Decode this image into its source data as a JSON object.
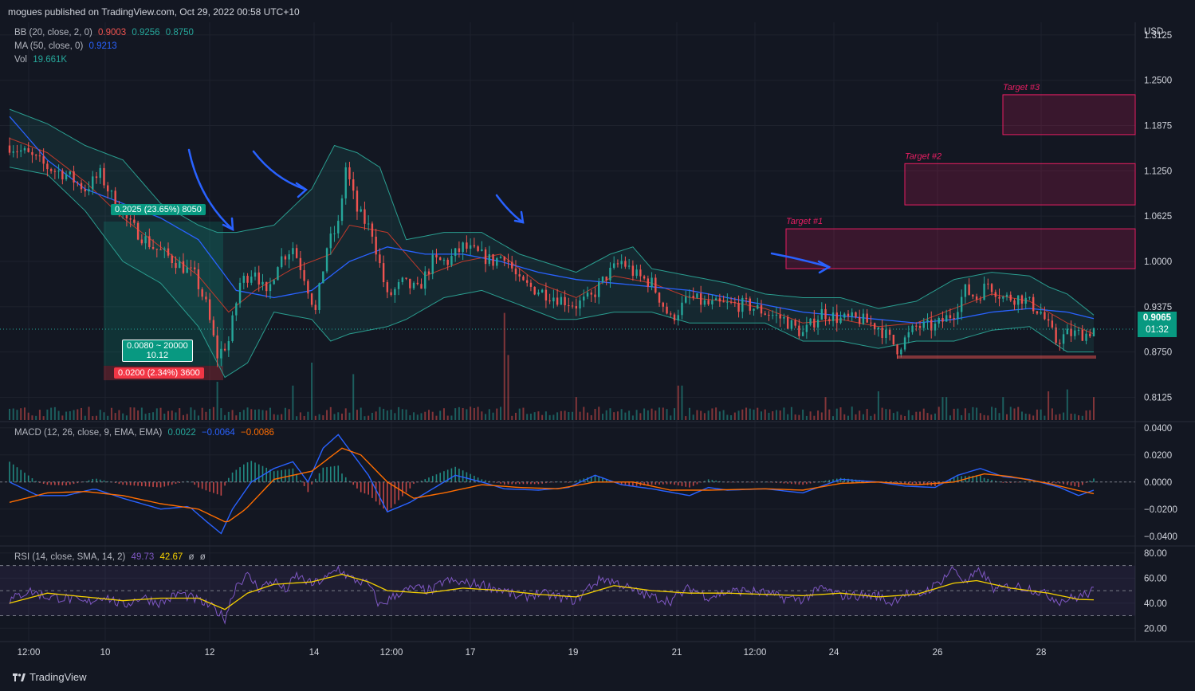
{
  "header": {
    "published": "mogues published on TradingView.com, Oct 29, 2022 00:58 UTC+10"
  },
  "legends": {
    "bb": {
      "label": "BB (20, close, 2, 0)",
      "v1": "0.9003",
      "v2": "0.9256",
      "v3": "0.8750"
    },
    "ma": {
      "label": "MA (50, close, 0)",
      "v1": "0.9213"
    },
    "vol": {
      "label": "Vol",
      "v1": "19.661K"
    },
    "macd": {
      "label": "MACD (12, 26, close, 9, EMA, EMA)",
      "v1": "0.0022",
      "v2": "−0.0064",
      "v3": "−0.0086"
    },
    "rsi": {
      "label": "RSI (14, close, SMA, 14, 2)",
      "v1": "49.73",
      "v2": "42.67",
      "v3": "ø",
      "v4": "ø"
    }
  },
  "colors": {
    "up": "#26a69a",
    "down": "#ef5350",
    "bg": "#131722",
    "grid": "#1e222d",
    "bb_basis": "#ff6d00",
    "bb_band": "#2a9d8f",
    "ma": "#2962ff",
    "macd": "#2962ff",
    "signal": "#ff6d00",
    "rsi": "#7e57c2",
    "rsi_ma": "#f5d000",
    "target": "#e91e63",
    "annotation_arrow": "#2962ff"
  },
  "price_axis": {
    "currency": "USD",
    "ticks": [
      "1.3125",
      "1.2500",
      "1.1875",
      "1.1250",
      "1.0625",
      "1.0000",
      "0.9375",
      "0.8750",
      "0.8125"
    ]
  },
  "macd_axis": {
    "ticks": [
      "0.0400",
      "0.0200",
      "0.0000",
      "−0.0200",
      "−0.0400"
    ]
  },
  "rsi_axis": {
    "ticks": [
      "80.00",
      "60.00",
      "40.00",
      "20.00"
    ]
  },
  "time_axis": {
    "ticks": [
      "12:00",
      "10",
      "12",
      "14",
      "12:00",
      "17",
      "19",
      "21",
      "12:00",
      "24",
      "26",
      "28"
    ]
  },
  "last_price": {
    "value": "0.9065",
    "countdown": "01:32"
  },
  "position": {
    "profit_label": "0.2025 (23.65%) 8050",
    "entry_label": "0.0080 ~ 20000",
    "entry_sub": "10.12",
    "loss_label": "0.0200 (2.34%) 3600"
  },
  "targets": [
    "Target #1",
    "Target #2",
    "Target #3"
  ],
  "branding": {
    "name": "TradingView"
  },
  "chart_data": {
    "type": "candlestick",
    "price_range": [
      0.78,
      1.33
    ],
    "last_price": 0.9065,
    "price_path": [
      [
        0,
        1.16
      ],
      [
        8,
        1.15
      ],
      [
        20,
        1.13
      ],
      [
        30,
        1.12
      ],
      [
        40,
        1.1
      ],
      [
        48,
        1.12
      ],
      [
        56,
        1.08
      ],
      [
        64,
        1.05
      ],
      [
        76,
        1.02
      ],
      [
        88,
        1.0
      ],
      [
        98,
        0.98
      ],
      [
        104,
        0.94
      ],
      [
        110,
        0.87
      ],
      [
        116,
        0.89
      ],
      [
        122,
        0.97
      ],
      [
        130,
        0.99
      ],
      [
        136,
        0.95
      ],
      [
        142,
        1.0
      ],
      [
        150,
        1.02
      ],
      [
        156,
        0.98
      ],
      [
        162,
        0.93
      ],
      [
        168,
        1.02
      ],
      [
        174,
        1.05
      ],
      [
        178,
        1.13
      ],
      [
        184,
        1.07
      ],
      [
        192,
        1.04
      ],
      [
        200,
        0.95
      ],
      [
        208,
        0.97
      ],
      [
        216,
        0.96
      ],
      [
        224,
        1.0
      ],
      [
        232,
        1.0
      ],
      [
        240,
        1.02
      ],
      [
        248,
        1.01
      ],
      [
        256,
        1.0
      ],
      [
        262,
        1.01
      ],
      [
        270,
        0.97
      ],
      [
        280,
        0.96
      ],
      [
        290,
        0.95
      ],
      [
        300,
        0.94
      ],
      [
        308,
        0.95
      ],
      [
        316,
        0.98
      ],
      [
        324,
        1.0
      ],
      [
        332,
        0.98
      ],
      [
        340,
        0.97
      ],
      [
        350,
        0.92
      ],
      [
        360,
        0.95
      ],
      [
        370,
        0.94
      ],
      [
        380,
        0.94
      ],
      [
        390,
        0.94
      ],
      [
        400,
        0.93
      ],
      [
        410,
        0.92
      ],
      [
        420,
        0.9
      ],
      [
        430,
        0.93
      ],
      [
        440,
        0.92
      ],
      [
        450,
        0.92
      ],
      [
        460,
        0.91
      ],
      [
        470,
        0.88
      ],
      [
        480,
        0.91
      ],
      [
        490,
        0.91
      ],
      [
        500,
        0.93
      ],
      [
        506,
        0.96
      ],
      [
        512,
        0.95
      ],
      [
        518,
        0.97
      ],
      [
        526,
        0.95
      ],
      [
        536,
        0.95
      ],
      [
        546,
        0.93
      ],
      [
        554,
        0.89
      ],
      [
        560,
        0.9
      ],
      [
        570,
        0.9
      ],
      [
        574,
        0.907
      ]
    ],
    "ma_path": [
      [
        0,
        1.2
      ],
      [
        20,
        1.14
      ],
      [
        40,
        1.1
      ],
      [
        60,
        1.08
      ],
      [
        80,
        1.06
      ],
      [
        100,
        1.03
      ],
      [
        120,
        0.96
      ],
      [
        140,
        0.95
      ],
      [
        160,
        0.96
      ],
      [
        180,
        1.0
      ],
      [
        200,
        1.02
      ],
      [
        220,
        1.01
      ],
      [
        240,
        1.01
      ],
      [
        260,
        1.0
      ],
      [
        280,
        0.985
      ],
      [
        300,
        0.975
      ],
      [
        320,
        0.97
      ],
      [
        340,
        0.965
      ],
      [
        360,
        0.96
      ],
      [
        380,
        0.95
      ],
      [
        400,
        0.94
      ],
      [
        420,
        0.93
      ],
      [
        440,
        0.925
      ],
      [
        460,
        0.92
      ],
      [
        480,
        0.915
      ],
      [
        500,
        0.92
      ],
      [
        520,
        0.93
      ],
      [
        540,
        0.935
      ],
      [
        560,
        0.93
      ],
      [
        574,
        0.921
      ]
    ],
    "bb_basis_path": [
      [
        0,
        1.17
      ],
      [
        20,
        1.15
      ],
      [
        40,
        1.11
      ],
      [
        60,
        1.06
      ],
      [
        80,
        1.02
      ],
      [
        100,
        0.98
      ],
      [
        116,
        0.93
      ],
      [
        130,
        0.96
      ],
      [
        150,
        0.99
      ],
      [
        170,
        1.01
      ],
      [
        180,
        1.05
      ],
      [
        200,
        1.04
      ],
      [
        220,
        0.98
      ],
      [
        240,
        1.0
      ],
      [
        260,
        1.01
      ],
      [
        280,
        0.97
      ],
      [
        300,
        0.95
      ],
      [
        320,
        0.98
      ],
      [
        340,
        0.97
      ],
      [
        360,
        0.95
      ],
      [
        380,
        0.945
      ],
      [
        400,
        0.935
      ],
      [
        420,
        0.915
      ],
      [
        440,
        0.92
      ],
      [
        460,
        0.91
      ],
      [
        480,
        0.915
      ],
      [
        500,
        0.935
      ],
      [
        520,
        0.955
      ],
      [
        540,
        0.945
      ],
      [
        560,
        0.915
      ],
      [
        574,
        0.9
      ]
    ],
    "bb_upper_path": [
      [
        0,
        1.21
      ],
      [
        20,
        1.19
      ],
      [
        40,
        1.16
      ],
      [
        60,
        1.14
      ],
      [
        80,
        1.08
      ],
      [
        100,
        1.05
      ],
      [
        110,
        1.04
      ],
      [
        120,
        1.04
      ],
      [
        140,
        1.05
      ],
      [
        160,
        1.1
      ],
      [
        172,
        1.16
      ],
      [
        184,
        1.15
      ],
      [
        196,
        1.13
      ],
      [
        210,
        1.03
      ],
      [
        230,
        1.04
      ],
      [
        250,
        1.04
      ],
      [
        270,
        1.01
      ],
      [
        300,
        0.985
      ],
      [
        318,
        1.01
      ],
      [
        330,
        1.02
      ],
      [
        340,
        0.99
      ],
      [
        360,
        0.98
      ],
      [
        380,
        0.97
      ],
      [
        400,
        0.955
      ],
      [
        420,
        0.95
      ],
      [
        440,
        0.95
      ],
      [
        460,
        0.935
      ],
      [
        480,
        0.945
      ],
      [
        500,
        0.975
      ],
      [
        520,
        0.985
      ],
      [
        540,
        0.98
      ],
      [
        550,
        0.965
      ],
      [
        560,
        0.955
      ],
      [
        574,
        0.926
      ]
    ],
    "bb_lower_path": [
      [
        0,
        1.13
      ],
      [
        20,
        1.12
      ],
      [
        40,
        1.07
      ],
      [
        60,
        1.0
      ],
      [
        80,
        0.97
      ],
      [
        100,
        0.91
      ],
      [
        114,
        0.84
      ],
      [
        126,
        0.86
      ],
      [
        140,
        0.93
      ],
      [
        160,
        0.92
      ],
      [
        170,
        0.89
      ],
      [
        180,
        0.9
      ],
      [
        200,
        0.91
      ],
      [
        210,
        0.92
      ],
      [
        230,
        0.95
      ],
      [
        250,
        0.96
      ],
      [
        270,
        0.94
      ],
      [
        290,
        0.92
      ],
      [
        300,
        0.92
      ],
      [
        320,
        0.93
      ],
      [
        340,
        0.93
      ],
      [
        360,
        0.915
      ],
      [
        380,
        0.915
      ],
      [
        400,
        0.915
      ],
      [
        420,
        0.89
      ],
      [
        440,
        0.89
      ],
      [
        460,
        0.88
      ],
      [
        480,
        0.89
      ],
      [
        500,
        0.89
      ],
      [
        520,
        0.905
      ],
      [
        540,
        0.91
      ],
      [
        560,
        0.875
      ],
      [
        574,
        0.875
      ]
    ],
    "volume_spikes": [
      [
        110,
        0.2
      ],
      [
        150,
        0.18
      ],
      [
        160,
        0.3
      ],
      [
        182,
        0.24
      ],
      [
        262,
        0.56
      ],
      [
        264,
        0.34
      ],
      [
        300,
        0.12
      ],
      [
        355,
        0.18
      ],
      [
        432,
        0.12
      ],
      [
        460,
        0.15
      ],
      [
        495,
        0.12
      ],
      [
        526,
        0.12
      ],
      [
        550,
        0.15
      ],
      [
        560,
        0.16
      ],
      [
        574,
        0.12
      ]
    ],
    "macd_range": [
      -0.046,
      0.044
    ],
    "macd_path": [
      [
        0,
        0.0
      ],
      [
        15,
        -0.01
      ],
      [
        30,
        -0.01
      ],
      [
        45,
        -0.005
      ],
      [
        60,
        -0.012
      ],
      [
        80,
        -0.02
      ],
      [
        95,
        -0.018
      ],
      [
        105,
        -0.03
      ],
      [
        112,
        -0.038
      ],
      [
        118,
        -0.02
      ],
      [
        128,
        0.0
      ],
      [
        140,
        0.01
      ],
      [
        150,
        0.015
      ],
      [
        158,
        0.0
      ],
      [
        166,
        0.025
      ],
      [
        174,
        0.035
      ],
      [
        182,
        0.02
      ],
      [
        190,
        0.005
      ],
      [
        200,
        -0.022
      ],
      [
        212,
        -0.015
      ],
      [
        224,
        -0.005
      ],
      [
        236,
        0.005
      ],
      [
        250,
        0.0
      ],
      [
        262,
        -0.005
      ],
      [
        280,
        -0.006
      ],
      [
        296,
        -0.004
      ],
      [
        310,
        0.005
      ],
      [
        324,
        -0.002
      ],
      [
        340,
        -0.005
      ],
      [
        360,
        -0.01
      ],
      [
        370,
        -0.004
      ],
      [
        380,
        -0.006
      ],
      [
        400,
        -0.005
      ],
      [
        420,
        -0.008
      ],
      [
        440,
        0.002
      ],
      [
        460,
        0.0
      ],
      [
        474,
        -0.003
      ],
      [
        490,
        -0.004
      ],
      [
        502,
        0.005
      ],
      [
        514,
        0.01
      ],
      [
        526,
        0.004
      ],
      [
        540,
        0.002
      ],
      [
        556,
        -0.004
      ],
      [
        566,
        -0.01
      ],
      [
        574,
        -0.006
      ]
    ],
    "signal_path": [
      [
        0,
        -0.015
      ],
      [
        20,
        -0.008
      ],
      [
        40,
        -0.007
      ],
      [
        60,
        -0.01
      ],
      [
        80,
        -0.016
      ],
      [
        100,
        -0.02
      ],
      [
        115,
        -0.03
      ],
      [
        125,
        -0.02
      ],
      [
        140,
        0.002
      ],
      [
        160,
        0.008
      ],
      [
        176,
        0.025
      ],
      [
        186,
        0.02
      ],
      [
        200,
        0.0
      ],
      [
        214,
        -0.012
      ],
      [
        230,
        -0.008
      ],
      [
        250,
        -0.002
      ],
      [
        270,
        -0.004
      ],
      [
        290,
        -0.005
      ],
      [
        310,
        0.0
      ],
      [
        330,
        0.0
      ],
      [
        350,
        -0.006
      ],
      [
        370,
        -0.006
      ],
      [
        400,
        -0.005
      ],
      [
        420,
        -0.006
      ],
      [
        440,
        -0.001
      ],
      [
        460,
        0.0
      ],
      [
        480,
        -0.002
      ],
      [
        500,
        0.0
      ],
      [
        516,
        0.006
      ],
      [
        530,
        0.004
      ],
      [
        550,
        -0.001
      ],
      [
        565,
        -0.006
      ],
      [
        574,
        -0.0086
      ]
    ],
    "rsi_range": [
      10,
      85
    ],
    "rsi_bands": [
      30,
      50,
      70
    ],
    "rsi_path": [
      [
        0,
        42
      ],
      [
        10,
        50
      ],
      [
        20,
        45
      ],
      [
        30,
        44
      ],
      [
        40,
        40
      ],
      [
        50,
        46
      ],
      [
        60,
        38
      ],
      [
        70,
        45
      ],
      [
        80,
        40
      ],
      [
        90,
        48
      ],
      [
        100,
        42
      ],
      [
        108,
        36
      ],
      [
        114,
        28
      ],
      [
        120,
        55
      ],
      [
        126,
        62
      ],
      [
        132,
        52
      ],
      [
        140,
        58
      ],
      [
        146,
        50
      ],
      [
        152,
        62
      ],
      [
        160,
        55
      ],
      [
        168,
        60
      ],
      [
        174,
        68
      ],
      [
        180,
        60
      ],
      [
        190,
        55
      ],
      [
        196,
        38
      ],
      [
        206,
        48
      ],
      [
        214,
        52
      ],
      [
        224,
        50
      ],
      [
        230,
        58
      ],
      [
        240,
        56
      ],
      [
        250,
        55
      ],
      [
        262,
        50
      ],
      [
        270,
        44
      ],
      [
        280,
        48
      ],
      [
        290,
        45
      ],
      [
        300,
        42
      ],
      [
        306,
        52
      ],
      [
        314,
        60
      ],
      [
        324,
        55
      ],
      [
        330,
        50
      ],
      [
        340,
        45
      ],
      [
        350,
        42
      ],
      [
        360,
        52
      ],
      [
        370,
        45
      ],
      [
        380,
        49
      ],
      [
        390,
        50
      ],
      [
        400,
        48
      ],
      [
        410,
        44
      ],
      [
        420,
        43
      ],
      [
        430,
        52
      ],
      [
        440,
        46
      ],
      [
        450,
        46
      ],
      [
        460,
        46
      ],
      [
        466,
        40
      ],
      [
        474,
        48
      ],
      [
        480,
        45
      ],
      [
        490,
        54
      ],
      [
        500,
        68
      ],
      [
        506,
        56
      ],
      [
        514,
        66
      ],
      [
        522,
        50
      ],
      [
        530,
        54
      ],
      [
        540,
        52
      ],
      [
        550,
        46
      ],
      [
        556,
        42
      ],
      [
        566,
        45
      ],
      [
        574,
        49.73
      ]
    ],
    "rsi_ma_path": [
      [
        0,
        40
      ],
      [
        20,
        48
      ],
      [
        40,
        45
      ],
      [
        60,
        42
      ],
      [
        80,
        44
      ],
      [
        100,
        44
      ],
      [
        114,
        35
      ],
      [
        126,
        48
      ],
      [
        140,
        55
      ],
      [
        160,
        57
      ],
      [
        176,
        63
      ],
      [
        190,
        57
      ],
      [
        200,
        50
      ],
      [
        220,
        48
      ],
      [
        240,
        52
      ],
      [
        262,
        50
      ],
      [
        280,
        47
      ],
      [
        300,
        45
      ],
      [
        320,
        54
      ],
      [
        340,
        50
      ],
      [
        360,
        48
      ],
      [
        380,
        48
      ],
      [
        400,
        47
      ],
      [
        420,
        46
      ],
      [
        440,
        48
      ],
      [
        460,
        45
      ],
      [
        480,
        47
      ],
      [
        500,
        56
      ],
      [
        512,
        58
      ],
      [
        530,
        52
      ],
      [
        550,
        48
      ],
      [
        566,
        43
      ],
      [
        574,
        42.67
      ]
    ]
  }
}
